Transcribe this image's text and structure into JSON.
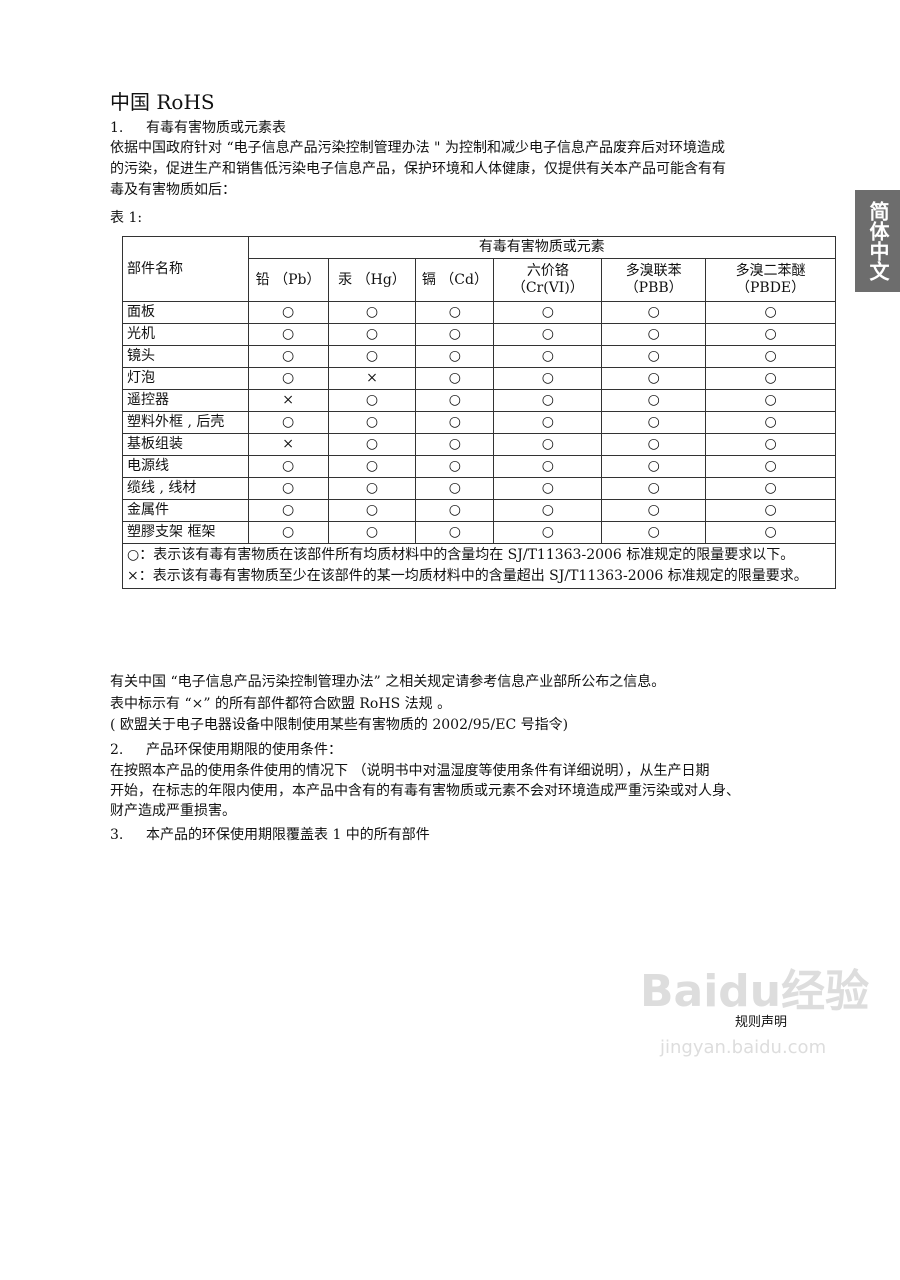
{
  "title": "中国 RoHS",
  "side_tab": "简体中文",
  "section1": {
    "num": "1.",
    "heading": "有毒有害物质或元素表",
    "para": [
      "依据中国政府针对 “电子信息产品污染控制管理办法 \" 为控制和减少电子信息产品废弃后对环境造成",
      "的污染，促进生产和销售低污染电子信息产品，保护环境和人体健康，仅提供有关本产品可能含有有",
      "毒及有害物质如后："
    ],
    "table_label": "表 1:"
  },
  "table": {
    "part_header": "部件名称",
    "group_header": "有毒有害物质或元素",
    "columns": [
      "铅 （Pb）",
      "汞 （Hg）",
      "镉 （Cd）",
      "六价铬\n（Cr(VI)）",
      "多溴联苯\n（PBB）",
      "多溴二苯醚\n（PBDE）"
    ],
    "rows": [
      {
        "part": "面板",
        "v": [
          "○",
          "○",
          "○",
          "○",
          "○",
          "○"
        ]
      },
      {
        "part": "光机",
        "v": [
          "○",
          "○",
          "○",
          "○",
          "○",
          "○"
        ]
      },
      {
        "part": "镜头",
        "v": [
          "○",
          "○",
          "○",
          "○",
          "○",
          "○"
        ]
      },
      {
        "part": "灯泡",
        "v": [
          "○",
          "×",
          "○",
          "○",
          "○",
          "○"
        ]
      },
      {
        "part": "遥控器",
        "v": [
          "×",
          "○",
          "○",
          "○",
          "○",
          "○"
        ]
      },
      {
        "part": "塑料外框 , 后壳",
        "v": [
          "○",
          "○",
          "○",
          "○",
          "○",
          "○"
        ]
      },
      {
        "part": "基板组装",
        "v": [
          "×",
          "○",
          "○",
          "○",
          "○",
          "○"
        ]
      },
      {
        "part": "电源线",
        "v": [
          "○",
          "○",
          "○",
          "○",
          "○",
          "○"
        ]
      },
      {
        "part": "缆线 , 线材",
        "v": [
          "○",
          "○",
          "○",
          "○",
          "○",
          "○"
        ]
      },
      {
        "part": "金属件",
        "v": [
          "○",
          "○",
          "○",
          "○",
          "○",
          "○"
        ]
      },
      {
        "part": "塑膠支架 框架",
        "v": [
          "○",
          "○",
          "○",
          "○",
          "○",
          "○"
        ]
      }
    ],
    "note_circle": "○：表示该有毒有害物质在该部件所有均质材料中的含量均在 SJ/T11363-2006 标准规定的限量要求以下。",
    "note_cross": "×：表示该有毒有害物质至少在该部件的某一均质材料中的含量超出 SJ/T11363-2006 标准规定的限量要求。"
  },
  "after_table": [
    "有关中国 “电子信息产品污染控制管理办法” 之相关规定请参考信息产业部所公布之信息。",
    "表中标示有 “×” 的所有部件都符合欧盟 RoHS 法规 。",
    "( 欧盟关于电子电器设备中限制使用某些有害物质的 2002/95/EC 号指令)"
  ],
  "section2": {
    "num": "2.",
    "heading": "产品环保使用期限的使用条件：",
    "para": [
      "在按照本产品的使用条件使用的情况下 （说明书中对温湿度等使用条件有详细说明），从生产日期",
      "开始，在标志的年限内使用，本产品中含有的有毒有害物质或元素不会对环境造成严重污染或对人身、",
      "财产造成严重损害。"
    ]
  },
  "section3": {
    "num": "3.",
    "heading": "本产品的环保使用期限覆盖表 1 中的所有部件"
  },
  "watermark": {
    "logo": "Baidu经验",
    "url": "jingyan.baidu.com"
  },
  "footer": "规则声明"
}
